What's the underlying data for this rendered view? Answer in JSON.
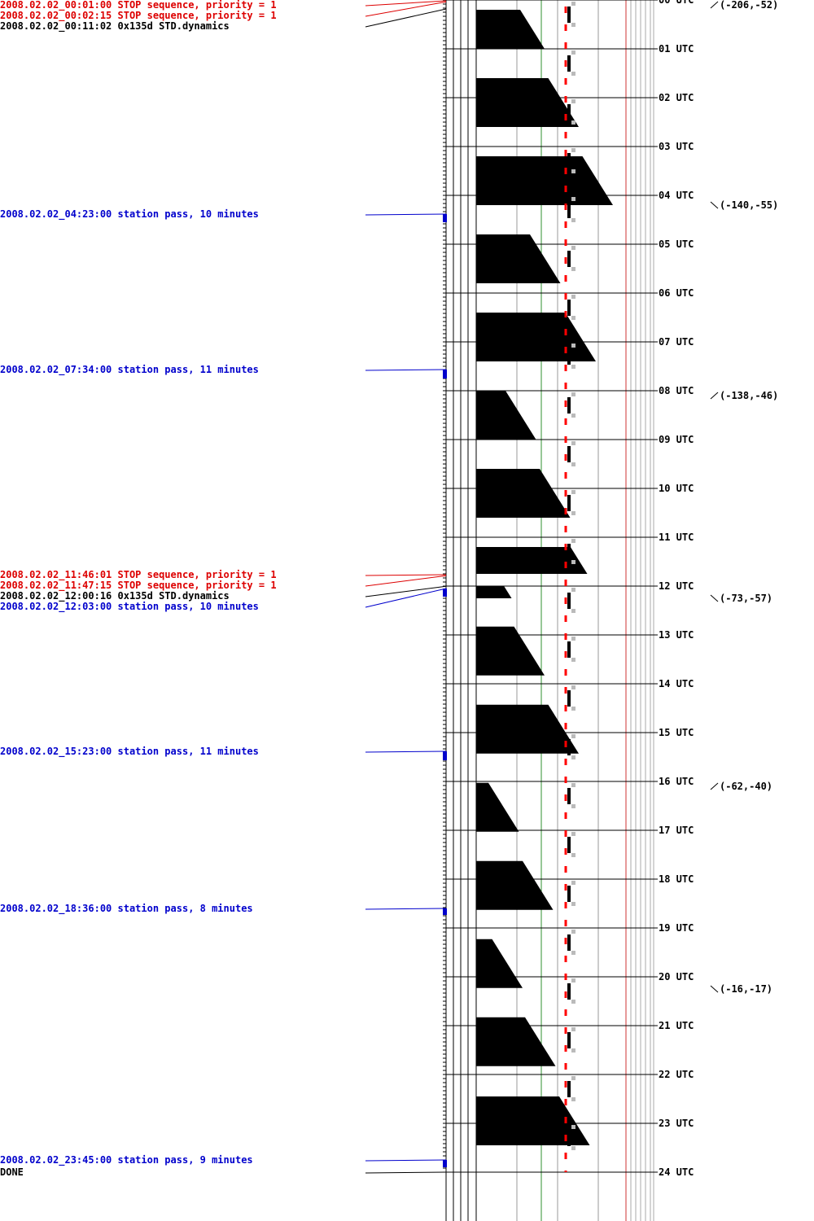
{
  "colors": {
    "stop": "#dd0000",
    "pass": "#0000cc",
    "cmd": "#000000",
    "fill": "#000000",
    "dash": "#ff0000",
    "grey": "#bbbbbb",
    "green_line": "#2f8f2f",
    "red_line": "#cc3333"
  },
  "events": [
    {
      "text": "2008.02.02_00:01:00 STOP sequence, priority = 1",
      "kind": "stop",
      "hour": 0.0167
    },
    {
      "text": "2008.02.02_00:02:15 STOP sequence, priority = 1",
      "kind": "stop",
      "hour": 0.0375
    },
    {
      "text": "2008.02.02_00:11:02 0x135d STD.dynamics",
      "kind": "cmd",
      "hour": 0.1839
    },
    {
      "text": "2008.02.02_04:23:00 station pass, 10 minutes",
      "kind": "pass",
      "hour": 4.3833,
      "duration_min": 10
    },
    {
      "text": "2008.02.02_07:34:00 station pass, 11 minutes",
      "kind": "pass",
      "hour": 7.5667,
      "duration_min": 11
    },
    {
      "text": "2008.02.02_11:46:01 STOP sequence, priority = 1",
      "kind": "stop",
      "hour": 11.7669
    },
    {
      "text": "2008.02.02_11:47:15 STOP sequence, priority = 1",
      "kind": "stop",
      "hour": 11.7875
    },
    {
      "text": "2008.02.02_12:00:16 0x135d STD.dynamics",
      "kind": "cmd",
      "hour": 12.0044
    },
    {
      "text": "2008.02.02_12:03:00 station pass, 10 minutes",
      "kind": "pass",
      "hour": 12.05,
      "duration_min": 10
    },
    {
      "text": "2008.02.02_15:23:00 station pass, 11 minutes",
      "kind": "pass",
      "hour": 15.3833,
      "duration_min": 11
    },
    {
      "text": "2008.02.02_18:36:00 station pass, 8 minutes",
      "kind": "pass",
      "hour": 18.6,
      "duration_min": 8
    },
    {
      "text": "2008.02.02_23:45:00 station pass, 9 minutes",
      "kind": "pass",
      "hour": 23.75,
      "duration_min": 9
    },
    {
      "text": "DONE",
      "kind": "cmd",
      "hour": 24.0
    }
  ],
  "hours": [
    "00 UTC",
    "01 UTC",
    "02 UTC",
    "03 UTC",
    "04 UTC",
    "05 UTC",
    "06 UTC",
    "07 UTC",
    "08 UTC",
    "09 UTC",
    "10 UTC",
    "11 UTC",
    "12 UTC",
    "13 UTC",
    "14 UTC",
    "15 UTC",
    "16 UTC",
    "17 UTC",
    "18 UTC",
    "19 UTC",
    "20 UTC",
    "21 UTC",
    "22 UTC",
    "23 UTC",
    "24 UTC"
  ],
  "coords": [
    {
      "text": "(-206,-52)",
      "hour": 0.1,
      "dir": "up"
    },
    {
      "text": "(-140,-55)",
      "hour": 4.2,
      "dir": "down"
    },
    {
      "text": "(-138,-46)",
      "hour": 8.1,
      "dir": "up"
    },
    {
      "text": "(-73,-57)",
      "hour": 12.25,
      "dir": "down"
    },
    {
      "text": "(-62,-40)",
      "hour": 16.1,
      "dir": "up"
    },
    {
      "text": "(-16,-17)",
      "hour": 20.25,
      "dir": "down"
    }
  ],
  "chart_data": {
    "type": "timeline",
    "hour_range": [
      0,
      24
    ],
    "orbit_segments": [
      {
        "start_hour": 0.2,
        "end_hour": 1.0,
        "level": 0.56
      },
      {
        "start_hour": 1.6,
        "end_hour": 2.6,
        "level": 0.84
      },
      {
        "start_hour": 3.2,
        "end_hour": 4.2,
        "level": 1.12
      },
      {
        "start_hour": 4.8,
        "end_hour": 5.8,
        "level": 0.69
      },
      {
        "start_hour": 6.4,
        "end_hour": 7.4,
        "level": 0.98
      },
      {
        "start_hour": 8.0,
        "end_hour": 9.0,
        "level": 0.49
      },
      {
        "start_hour": 9.6,
        "end_hour": 10.6,
        "level": 0.77
      },
      {
        "start_hour": 11.2,
        "end_hour": 11.75,
        "level": 0.91
      },
      {
        "start_hour": 12.0,
        "end_hour": 12.25,
        "level": 0.29
      },
      {
        "start_hour": 12.83,
        "end_hour": 13.83,
        "level": 0.56
      },
      {
        "start_hour": 14.43,
        "end_hour": 15.43,
        "level": 0.84
      },
      {
        "start_hour": 16.03,
        "end_hour": 17.03,
        "level": 0.35
      },
      {
        "start_hour": 17.63,
        "end_hour": 18.63,
        "level": 0.63
      },
      {
        "start_hour": 19.23,
        "end_hour": 20.23,
        "level": 0.38
      },
      {
        "start_hour": 20.83,
        "end_hour": 21.83,
        "level": 0.65
      },
      {
        "start_hour": 22.45,
        "end_hour": 23.45,
        "level": 0.93
      }
    ]
  }
}
